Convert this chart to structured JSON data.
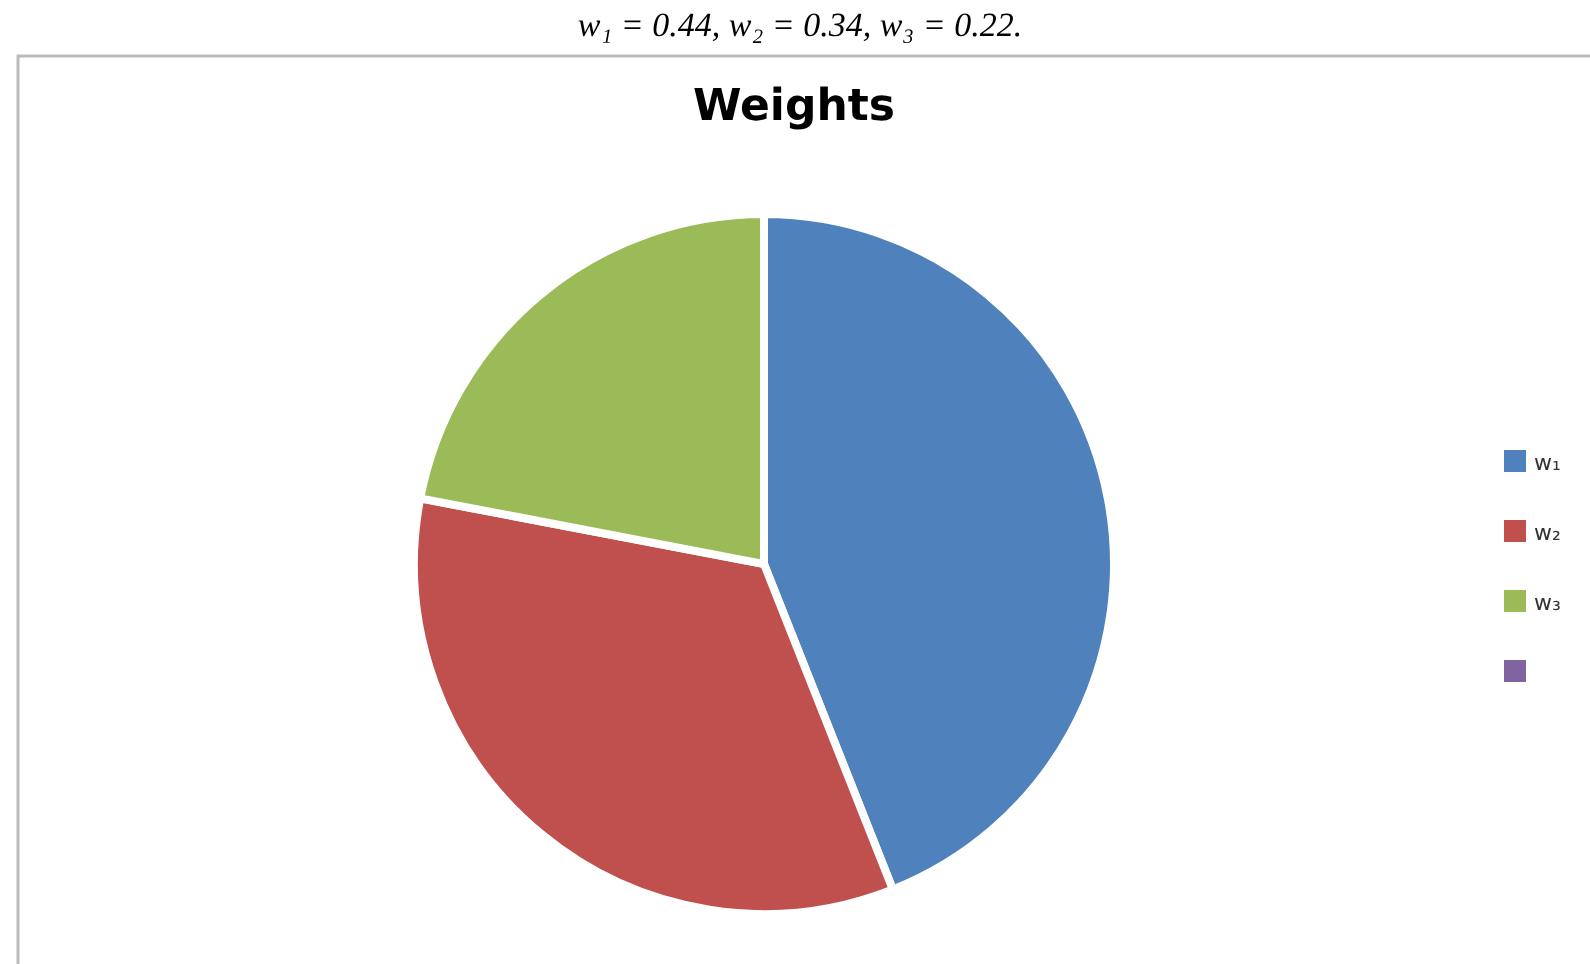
{
  "chart_data": {
    "type": "pie",
    "title": "Weights",
    "categories": [
      "w₁",
      "w₂",
      "w₃",
      null
    ],
    "values": [
      44,
      34,
      22,
      0
    ],
    "colors": [
      "#4f81bd",
      "#c0504d",
      "#9bbb59",
      "#8064a2"
    ],
    "legend": "right",
    "annotations": [
      "w₁ = 0.44, w₂ = 0.34, w₃ = 0.22."
    ]
  }
}
